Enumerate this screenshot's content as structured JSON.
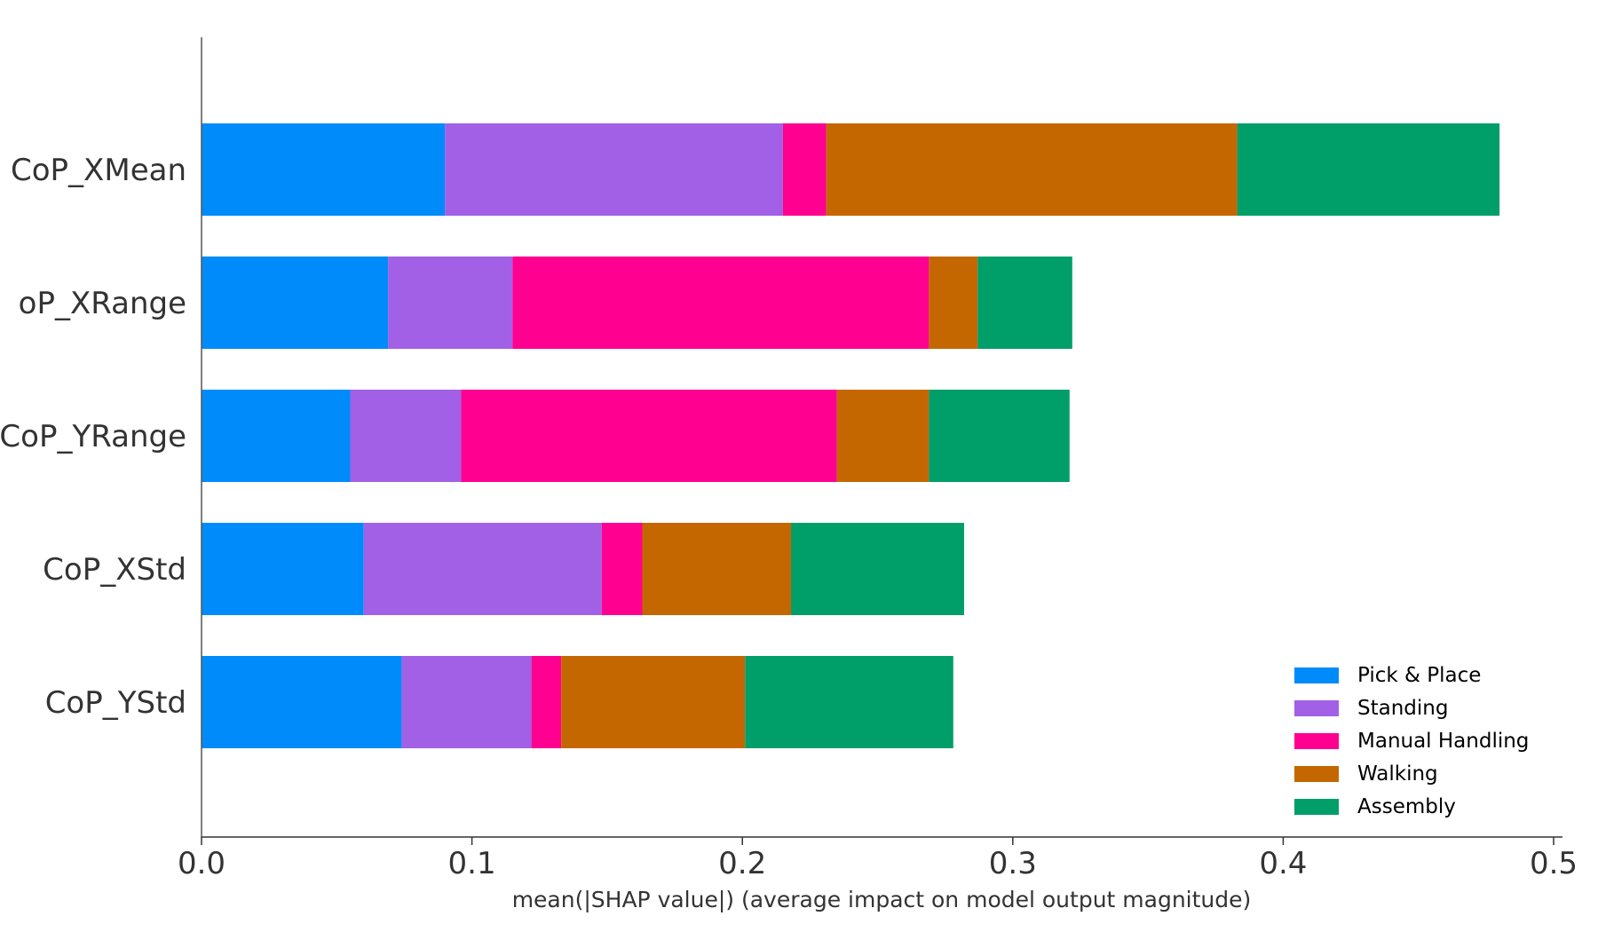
{
  "chart_data": {
    "type": "bar",
    "orientation": "horizontal",
    "stacked": true,
    "title": "",
    "xlabel": "mean(|SHAP value|) (average impact on model output magnitude)",
    "ylabel": "",
    "xlim": [
      0,
      0.5
    ],
    "xticks": [
      "0.0",
      "0.1",
      "0.2",
      "0.3",
      "0.4",
      "0.5"
    ],
    "categories": [
      "CoP_XMean",
      "CoP_XRange",
      "CoP_YRange",
      "CoP_XStd",
      "CoP_YStd"
    ],
    "category_labels": [
      "CoP_XMean",
      "oP_XRange",
      "CoP_YRange",
      "CoP_XStd",
      "CoP_YStd"
    ],
    "series": [
      {
        "name": "Pick & Place",
        "color": "#008bfb",
        "values": [
          0.09,
          0.069,
          0.055,
          0.06,
          0.074
        ]
      },
      {
        "name": "Standing",
        "color": "#a160e6",
        "values": [
          0.125,
          0.046,
          0.041,
          0.088,
          0.048
        ]
      },
      {
        "name": "Manual Handling",
        "color": "#ff0090",
        "values": [
          0.016,
          0.154,
          0.139,
          0.015,
          0.011
        ]
      },
      {
        "name": "Walking",
        "color": "#c56700",
        "values": [
          0.152,
          0.018,
          0.034,
          0.055,
          0.068
        ]
      },
      {
        "name": "Assembly",
        "color": "#009e69",
        "values": [
          0.097,
          0.035,
          0.052,
          0.064,
          0.077
        ]
      }
    ],
    "legend_position": "lower-right",
    "grid": false
  }
}
